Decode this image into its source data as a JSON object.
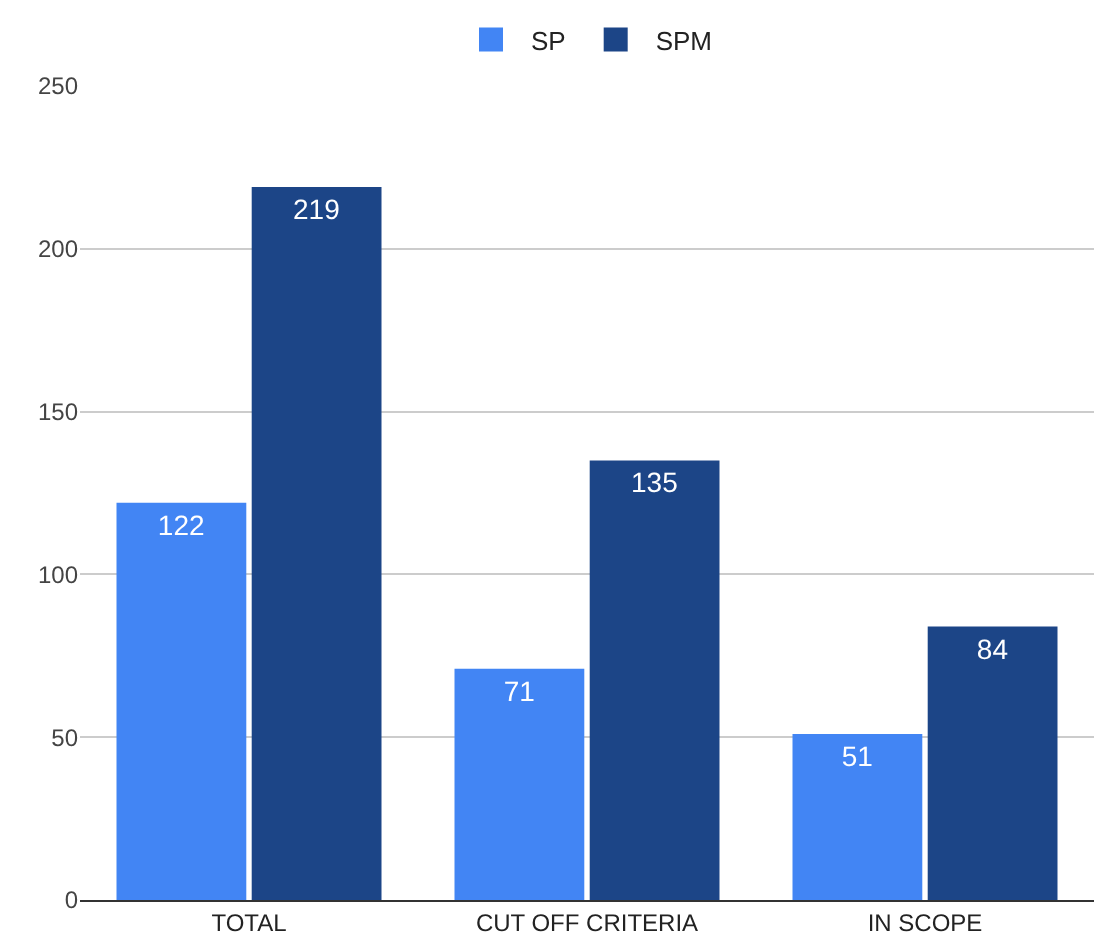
{
  "chart_data": {
    "type": "bar",
    "categories": [
      "TOTAL",
      "CUT OFF CRITERIA",
      "IN SCOPE"
    ],
    "series": [
      {
        "name": "SP",
        "color": "#4285f4",
        "values": [
          122,
          71,
          51
        ]
      },
      {
        "name": "SPM",
        "color": "#1c4587",
        "values": [
          219,
          135,
          84
        ]
      }
    ],
    "ylim": [
      0,
      250
    ],
    "yticks": [
      0,
      50,
      100,
      150,
      200,
      250
    ],
    "grid": "y",
    "legend": "top",
    "data_labels": true
  }
}
